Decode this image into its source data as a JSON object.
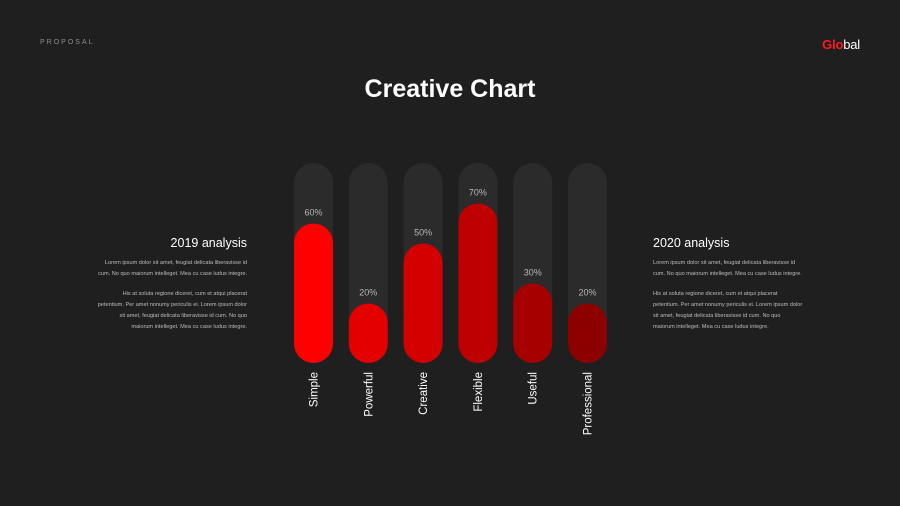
{
  "header": {
    "proposal": "PROPOSAL",
    "logo_accent": "Glo",
    "logo_rest": "bal",
    "title": "Creative Chart"
  },
  "left_panel": {
    "heading": "2019 analysis",
    "paragraph1": "Lorem ipsum dolor sit amet, feugiat delicata liberavisse id cum. No quo maiorum intelleget. Mea cu case ludus integre.",
    "paragraph2": "His at soluta regione diceret, cum et atqui placerat petentium. Per amet nonumy periculis ei. Lorem ipsum dolor sit amet, feugiat delicata liberavisse id cum. No quo maiorum intelleget. Mea cu case ludus integre."
  },
  "right_panel": {
    "heading": "2020 analysis",
    "paragraph1": "Lorem ipsum dolor sit amet, feugiat delicata liberavisse id cum. No quo maiorum intelleget. Mea cu case ludus integre.",
    "paragraph2": "His at soluta regione diceret, cum et atqui placerat petentium. Per amet nonumy periculis ei. Lorem ipsum dolor sit amet, feugiat delicata liberavisse id cum. No quo maiorum intelleget. Mea cu case ludus integre."
  },
  "chart_data": {
    "type": "bar",
    "categories": [
      "Simple",
      "Powerful",
      "Creative",
      "Flexible",
      "Useful",
      "Professional"
    ],
    "values": [
      60,
      20,
      50,
      70,
      30,
      20
    ],
    "value_labels": [
      "60%",
      "20%",
      "50%",
      "70%",
      "30%",
      "20%"
    ],
    "ylim": [
      0,
      100
    ],
    "colors": [
      "#ff0000",
      "#e50000",
      "#d40000",
      "#bf0000",
      "#a60000",
      "#8c0000"
    ],
    "track_color": "#2b2b2c",
    "label_color": "#b8b8b8",
    "category_color": "#ffffff",
    "grid": false,
    "legend": "none"
  }
}
